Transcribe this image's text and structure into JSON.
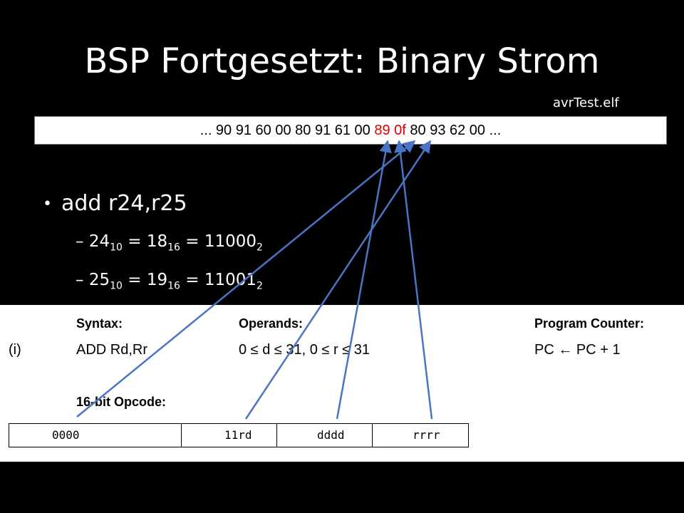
{
  "slide": {
    "title": "BSP Fortgesetzt: Binary Strom",
    "file_label": "avrTest.elf"
  },
  "byte_stream": {
    "before": "... 90 91 60 00 80 91 61 00 ",
    "highlight": "89 0f",
    "after": " 80 93 62 00 ..."
  },
  "bullet": {
    "text": "add r24,r25",
    "marker": "•",
    "sub": [
      {
        "dash": "–",
        "dec": "24",
        "dec_base": "10",
        "hex": "18",
        "hex_base": "16",
        "bin": "11000",
        "bin_base": "2"
      },
      {
        "dash": "–",
        "dec": "25",
        "dec_base": "10",
        "hex": "19",
        "hex_base": "16",
        "bin": "11001",
        "bin_base": "2"
      }
    ]
  },
  "manual": {
    "syntax_header": "Syntax:",
    "operands_header": "Operands:",
    "pc_header": "Program Counter:",
    "index": "(i)",
    "syntax": "ADD Rd,Rr",
    "operands": "0 ≤ d ≤ 31, 0 ≤ r ≤ 31",
    "pc": "PC ← PC + 1",
    "opcode_header": "16-bit Opcode:",
    "opcode_cells": [
      "0000",
      "11rd",
      "dddd",
      "rrrr"
    ]
  },
  "colors": {
    "background": "#000000",
    "highlight": "#e00000",
    "arrow": "#4a74c4"
  }
}
